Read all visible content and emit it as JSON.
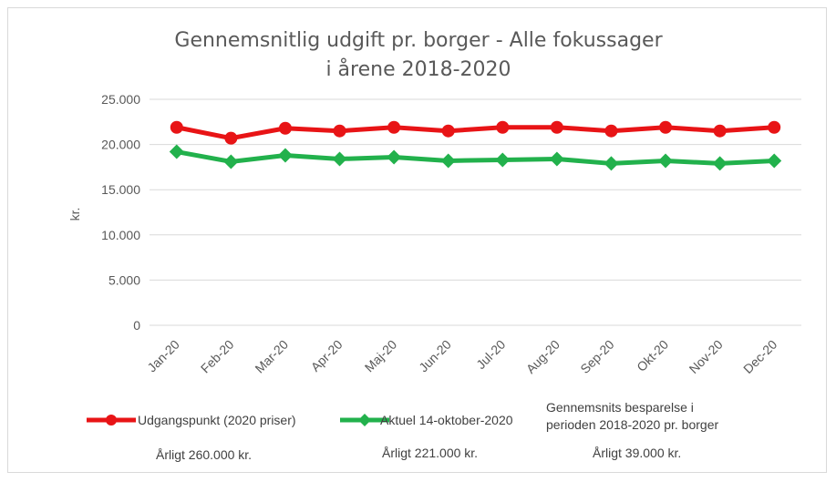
{
  "chart_data": {
    "type": "line",
    "title_lines": [
      "Gennemsnitlig udgift pr. borger - Alle fokussager",
      "i årene 2018-2020"
    ],
    "ylabel": "kr.",
    "ylim": [
      0,
      25000
    ],
    "yticks": [
      0,
      5000,
      10000,
      15000,
      20000,
      25000
    ],
    "ytick_labels": [
      "0",
      "5.000",
      "10.000",
      "15.000",
      "20.000",
      "25.000"
    ],
    "grid": true,
    "categories": [
      "Jan-20",
      "Feb-20",
      "Mar-20",
      "Apr-20",
      "Maj-20",
      "Jun-20",
      "Jul-20",
      "Aug-20",
      "Sep-20",
      "Okt-20",
      "Nov-20",
      "Dec-20"
    ],
    "series": [
      {
        "name": "Udgangspunkt (2020 priser)",
        "color": "#e81416",
        "marker": "circle",
        "values": [
          21900,
          20700,
          21800,
          21500,
          21900,
          21500,
          21900,
          21900,
          21500,
          21900,
          21500,
          21900
        ]
      },
      {
        "name": "Aktuel 14-oktober-2020",
        "color": "#22b14c",
        "marker": "diamond",
        "values": [
          19200,
          18100,
          18800,
          18400,
          18600,
          18200,
          18300,
          18400,
          17900,
          18200,
          17900,
          18200
        ]
      }
    ],
    "legend_placement": "bottom"
  },
  "notes": {
    "header_line1": "Gennemsnits besparelse i",
    "header_line2": "perioden 2018-2020 pr. borger",
    "annual_1": "Årligt 260.000 kr.",
    "annual_2": "Årligt 221.000 kr.",
    "annual_3": "Årligt 39.000 kr."
  }
}
